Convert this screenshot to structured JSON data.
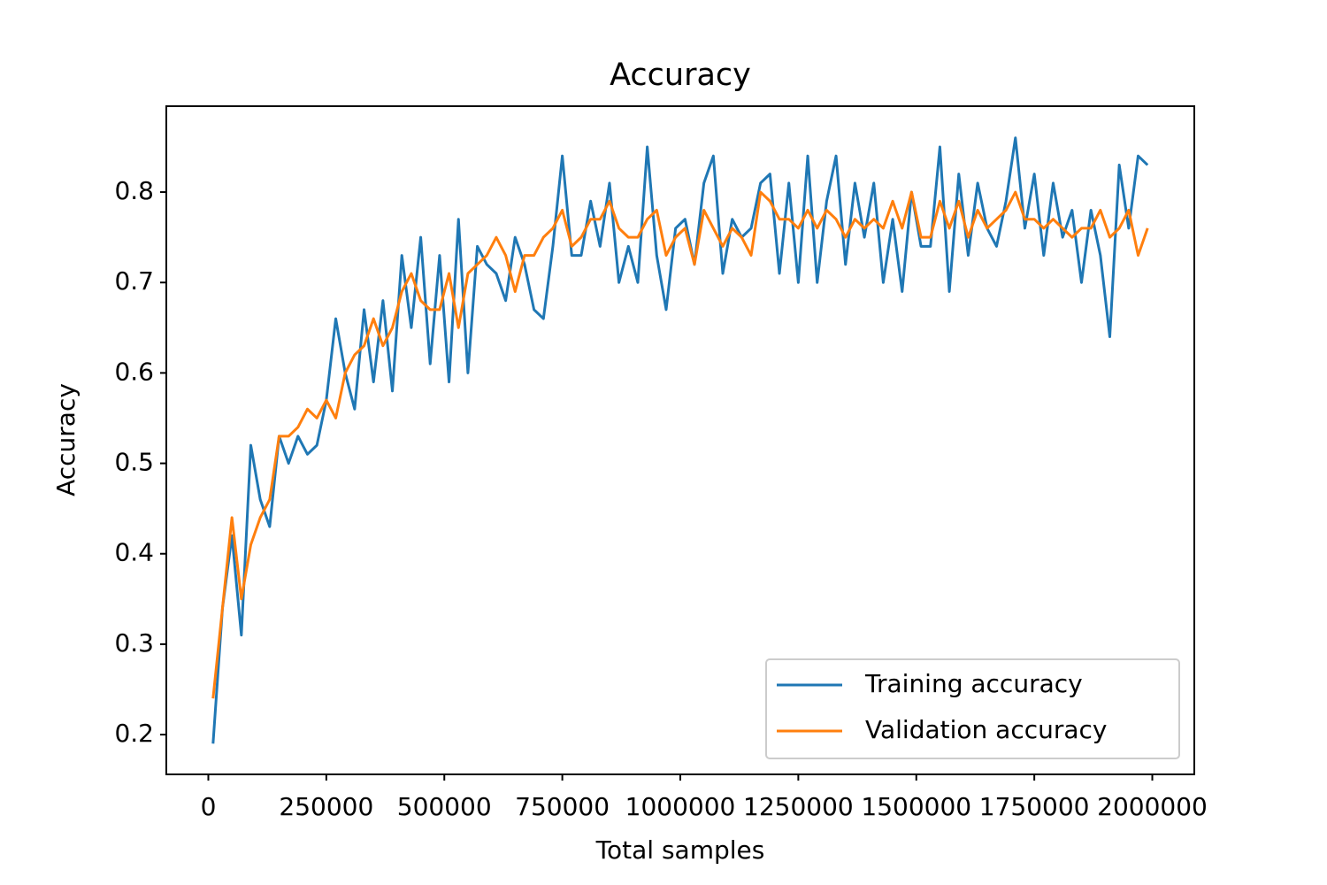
{
  "chart_data": {
    "type": "line",
    "title": "Accuracy",
    "x_label": "Total samples",
    "y_label": "Accuracy",
    "x": [
      10000,
      30000,
      50000,
      70000,
      90000,
      110000,
      130000,
      150000,
      170000,
      190000,
      210000,
      230000,
      250000,
      270000,
      290000,
      310000,
      330000,
      350000,
      370000,
      390000,
      410000,
      430000,
      450000,
      470000,
      490000,
      510000,
      530000,
      550000,
      570000,
      590000,
      610000,
      630000,
      650000,
      670000,
      690000,
      710000,
      730000,
      750000,
      770000,
      790000,
      810000,
      830000,
      850000,
      870000,
      890000,
      910000,
      930000,
      950000,
      970000,
      990000,
      1010000,
      1030000,
      1050000,
      1070000,
      1090000,
      1110000,
      1130000,
      1150000,
      1170000,
      1190000,
      1210000,
      1230000,
      1250000,
      1270000,
      1290000,
      1310000,
      1330000,
      1350000,
      1370000,
      1390000,
      1410000,
      1430000,
      1450000,
      1470000,
      1490000,
      1510000,
      1530000,
      1550000,
      1570000,
      1590000,
      1610000,
      1630000,
      1650000,
      1670000,
      1690000,
      1710000,
      1730000,
      1750000,
      1770000,
      1790000,
      1810000,
      1830000,
      1850000,
      1870000,
      1890000,
      1910000,
      1930000,
      1950000,
      1970000,
      1990000
    ],
    "series": [
      {
        "name": "Training accuracy",
        "color": "#1f77b4",
        "values": [
          0.19,
          0.34,
          0.42,
          0.31,
          0.52,
          0.46,
          0.43,
          0.53,
          0.5,
          0.53,
          0.51,
          0.52,
          0.57,
          0.66,
          0.6,
          0.56,
          0.67,
          0.59,
          0.68,
          0.58,
          0.73,
          0.65,
          0.75,
          0.61,
          0.73,
          0.59,
          0.77,
          0.6,
          0.74,
          0.72,
          0.71,
          0.68,
          0.75,
          0.72,
          0.67,
          0.66,
          0.74,
          0.84,
          0.73,
          0.73,
          0.79,
          0.74,
          0.81,
          0.7,
          0.74,
          0.7,
          0.85,
          0.73,
          0.67,
          0.76,
          0.77,
          0.72,
          0.81,
          0.84,
          0.71,
          0.77,
          0.75,
          0.76,
          0.81,
          0.82,
          0.71,
          0.81,
          0.7,
          0.84,
          0.7,
          0.79,
          0.84,
          0.72,
          0.81,
          0.75,
          0.81,
          0.7,
          0.77,
          0.69,
          0.8,
          0.74,
          0.74,
          0.85,
          0.69,
          0.82,
          0.73,
          0.81,
          0.76,
          0.74,
          0.79,
          0.86,
          0.76,
          0.82,
          0.73,
          0.81,
          0.75,
          0.78,
          0.7,
          0.78,
          0.73,
          0.64,
          0.83,
          0.76,
          0.84,
          0.83
        ]
      },
      {
        "name": "Validation accuracy",
        "color": "#ff7f0e",
        "values": [
          0.24,
          0.34,
          0.44,
          0.35,
          0.41,
          0.44,
          0.46,
          0.53,
          0.53,
          0.54,
          0.56,
          0.55,
          0.57,
          0.55,
          0.6,
          0.62,
          0.63,
          0.66,
          0.63,
          0.65,
          0.69,
          0.71,
          0.68,
          0.67,
          0.67,
          0.71,
          0.65,
          0.71,
          0.72,
          0.73,
          0.75,
          0.73,
          0.69,
          0.73,
          0.73,
          0.75,
          0.76,
          0.78,
          0.74,
          0.75,
          0.77,
          0.77,
          0.79,
          0.76,
          0.75,
          0.75,
          0.77,
          0.78,
          0.73,
          0.75,
          0.76,
          0.72,
          0.78,
          0.76,
          0.74,
          0.76,
          0.75,
          0.73,
          0.8,
          0.79,
          0.77,
          0.77,
          0.76,
          0.78,
          0.76,
          0.78,
          0.77,
          0.75,
          0.77,
          0.76,
          0.77,
          0.76,
          0.79,
          0.76,
          0.8,
          0.75,
          0.75,
          0.79,
          0.76,
          0.79,
          0.75,
          0.78,
          0.76,
          0.77,
          0.78,
          0.8,
          0.77,
          0.77,
          0.76,
          0.77,
          0.76,
          0.75,
          0.76,
          0.76,
          0.78,
          0.75,
          0.76,
          0.78,
          0.73,
          0.76
        ]
      }
    ],
    "xlim": [
      -89000,
      2089000
    ],
    "ylim": [
      0.156,
      0.895
    ],
    "xticks": [
      0,
      250000,
      500000,
      750000,
      1000000,
      1250000,
      1500000,
      1750000,
      2000000
    ],
    "yticks": [
      0.2,
      0.3,
      0.4,
      0.5,
      0.6,
      0.7,
      0.8
    ],
    "legend": "lower right"
  }
}
